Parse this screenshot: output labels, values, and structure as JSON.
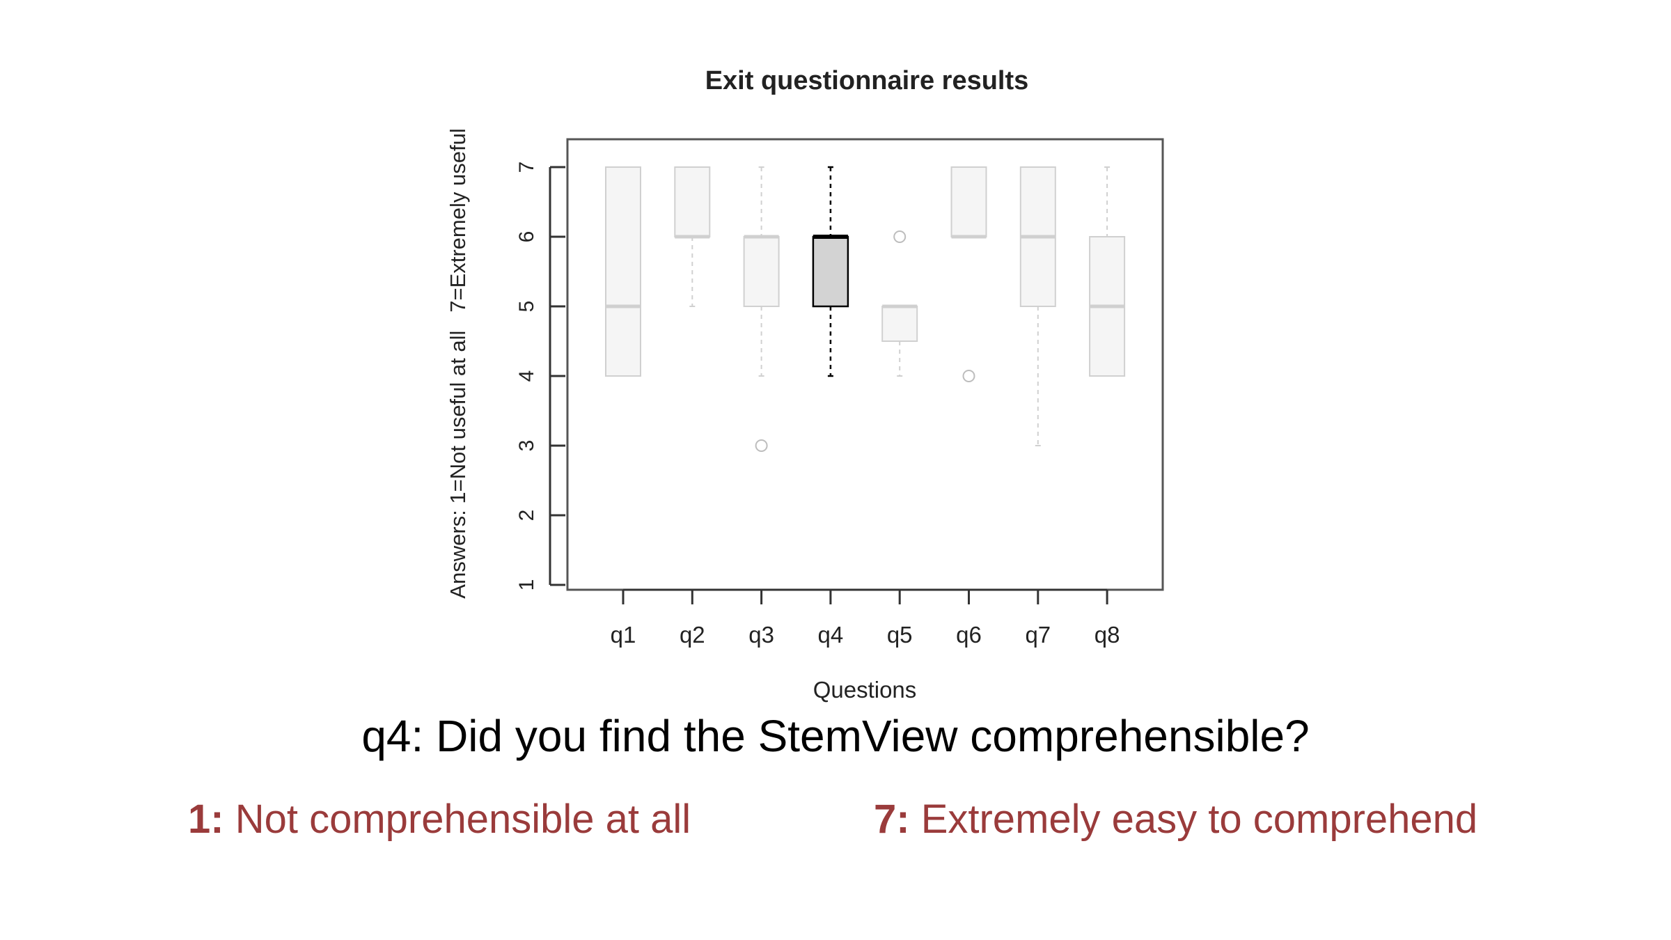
{
  "chart_data": {
    "type": "box",
    "title": "Exit questionnaire results",
    "xlabel": "Questions",
    "ylabel": "Answers: 1=Not useful at all   7=Extremely useful",
    "ylim": [
      1,
      7
    ],
    "yticks": [
      "1",
      "2",
      "3",
      "4",
      "5",
      "6",
      "7"
    ],
    "categories": [
      "q1",
      "q2",
      "q3",
      "q4",
      "q5",
      "q6",
      "q7",
      "q8"
    ],
    "highlighted": "q4",
    "boxes": [
      {
        "name": "q1",
        "whisker_low": 4,
        "q1": 4,
        "median": 5,
        "q3": 7,
        "whisker_high": 7,
        "outliers": []
      },
      {
        "name": "q2",
        "whisker_low": 5,
        "q1": 6,
        "median": 6,
        "q3": 7,
        "whisker_high": 7,
        "outliers": []
      },
      {
        "name": "q3",
        "whisker_low": 4,
        "q1": 5,
        "median": 6,
        "q3": 6,
        "whisker_high": 7,
        "outliers": [
          3
        ]
      },
      {
        "name": "q4",
        "whisker_low": 4,
        "q1": 5,
        "median": 6,
        "q3": 6,
        "whisker_high": 7,
        "outliers": []
      },
      {
        "name": "q5",
        "whisker_low": 4,
        "q1": 4.5,
        "median": 5,
        "q3": 5,
        "whisker_high": 5,
        "outliers": [
          6
        ]
      },
      {
        "name": "q6",
        "whisker_low": 6,
        "q1": 6,
        "median": 6,
        "q3": 7,
        "whisker_high": 7,
        "outliers": [
          4
        ]
      },
      {
        "name": "q7",
        "whisker_low": 3,
        "q1": 5,
        "median": 6,
        "q3": 7,
        "whisker_high": 7,
        "outliers": []
      },
      {
        "name": "q8",
        "whisker_low": 4,
        "q1": 4,
        "median": 5,
        "q3": 6,
        "whisker_high": 7,
        "outliers": []
      }
    ],
    "colors": {
      "highlight_fill": "#d3d3d3",
      "highlight_stroke": "#000000",
      "faded_fill": "#f5f5f5",
      "faded_stroke": "#d0d0d0",
      "axis": "#333333"
    }
  },
  "caption": {
    "question": "q4: Did you find the StemView comprehensible?",
    "low_key": "1:",
    "low_text": " Not comprehensible at all",
    "high_key": "7:",
    "high_text": " Extremely easy to comprehend",
    "color": "#9a3b3b"
  }
}
